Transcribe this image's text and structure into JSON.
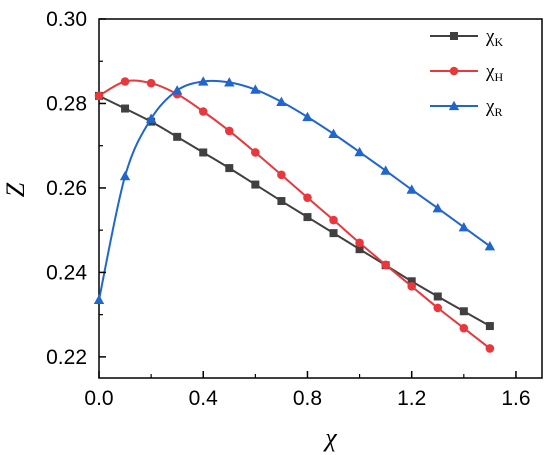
{
  "chart_data": {
    "type": "line",
    "xlabel": "χ",
    "ylabel": "Z",
    "xlim": [
      0.0,
      1.7
    ],
    "ylim": [
      0.215,
      0.3
    ],
    "xticks": [
      0.0,
      0.4,
      0.8,
      1.2,
      1.6
    ],
    "yticks": [
      0.22,
      0.24,
      0.26,
      0.28,
      0.3
    ],
    "xtick_labels": [
      "0.0",
      "0.4",
      "0.8",
      "1.2",
      "1.6"
    ],
    "ytick_labels": [
      "0.22",
      "0.24",
      "0.26",
      "0.28",
      "0.30"
    ],
    "legend_position": "top-right",
    "grid": false,
    "series": [
      {
        "name": "χ",
        "subscript": "K",
        "color": "#404040",
        "marker": "square",
        "x": [
          0.0,
          0.1,
          0.2,
          0.3,
          0.4,
          0.5,
          0.6,
          0.7,
          0.8,
          0.9,
          1.0,
          1.1,
          1.2,
          1.3,
          1.4,
          1.5
        ],
        "y": [
          0.2818,
          0.2788,
          0.2757,
          0.2721,
          0.2684,
          0.2647,
          0.2608,
          0.2569,
          0.2531,
          0.2493,
          0.2455,
          0.2417,
          0.2379,
          0.2343,
          0.2308,
          0.2273
        ]
      },
      {
        "name": "χ",
        "subscript": "H",
        "color": "#e8383d",
        "marker": "circle",
        "x": [
          0.0,
          0.1,
          0.2,
          0.3,
          0.4,
          0.5,
          0.6,
          0.7,
          0.8,
          0.9,
          1.0,
          1.1,
          1.2,
          1.3,
          1.4,
          1.5
        ],
        "y": [
          0.2818,
          0.2852,
          0.2848,
          0.2822,
          0.2781,
          0.2735,
          0.2684,
          0.2631,
          0.2577,
          0.2524,
          0.247,
          0.2418,
          0.2367,
          0.2316,
          0.2268,
          0.222
        ]
      },
      {
        "name": "χ",
        "subscript": "R",
        "color": "#2166cc",
        "marker": "triangle",
        "x": [
          0.0,
          0.1,
          0.2,
          0.3,
          0.4,
          0.5,
          0.6,
          0.7,
          0.8,
          0.9,
          1.0,
          1.1,
          1.2,
          1.3,
          1.4,
          1.5
        ],
        "y": [
          0.2335,
          0.2628,
          0.2764,
          0.2831,
          0.2852,
          0.285,
          0.2833,
          0.2804,
          0.2768,
          0.2728,
          0.2685,
          0.2641,
          0.2596,
          0.2552,
          0.2507,
          0.2462
        ]
      }
    ]
  }
}
